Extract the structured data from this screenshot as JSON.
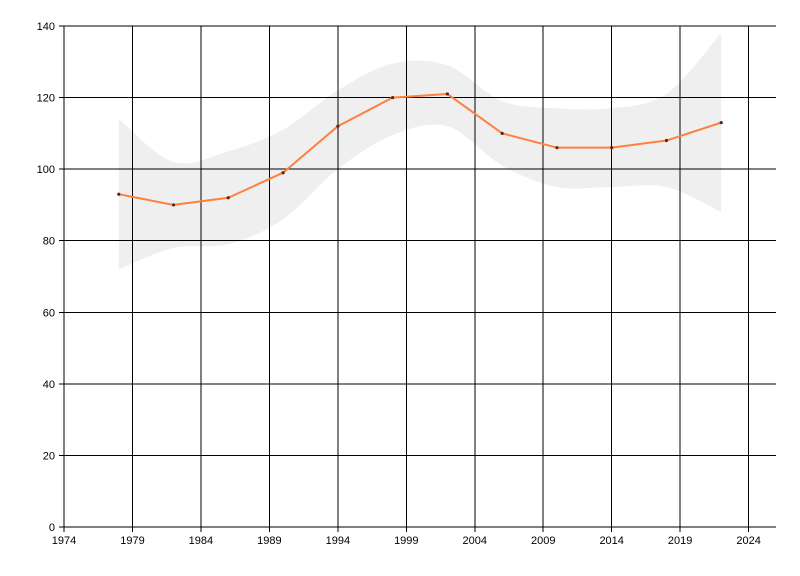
{
  "chart_data": {
    "type": "line",
    "title": "",
    "xlabel": "",
    "ylabel": "",
    "xlim": [
      1974,
      2026
    ],
    "ylim": [
      0,
      140
    ],
    "x_ticks": [
      1974,
      1979,
      1984,
      1989,
      1994,
      1999,
      2004,
      2009,
      2014,
      2019,
      2024
    ],
    "y_ticks": [
      0,
      20,
      40,
      60,
      80,
      100,
      120,
      140
    ],
    "grid": true,
    "legend": "none",
    "colors": {
      "line": "#ff7f3f",
      "marker": "#5a2a10",
      "band": "#efefef",
      "grid": "#000000"
    },
    "series": [
      {
        "x": [
          1978,
          1982,
          1986,
          1990,
          1994,
          1998,
          2002,
          2006,
          2010,
          2014,
          2018,
          2022
        ],
        "values": [
          93,
          90,
          92,
          99,
          112,
          120,
          121,
          110,
          106,
          106,
          108,
          113
        ]
      }
    ],
    "band": {
      "x": [
        1978,
        1982,
        1986,
        1990,
        1994,
        1998,
        2002,
        2006,
        2010,
        2014,
        2018,
        2022
      ],
      "upper": [
        114,
        102,
        105,
        111,
        122,
        129.5,
        129,
        119,
        117,
        117,
        121,
        138
      ],
      "lower": [
        72,
        78,
        79,
        86,
        100,
        109.5,
        112,
        101,
        95,
        95,
        95,
        88
      ]
    }
  }
}
